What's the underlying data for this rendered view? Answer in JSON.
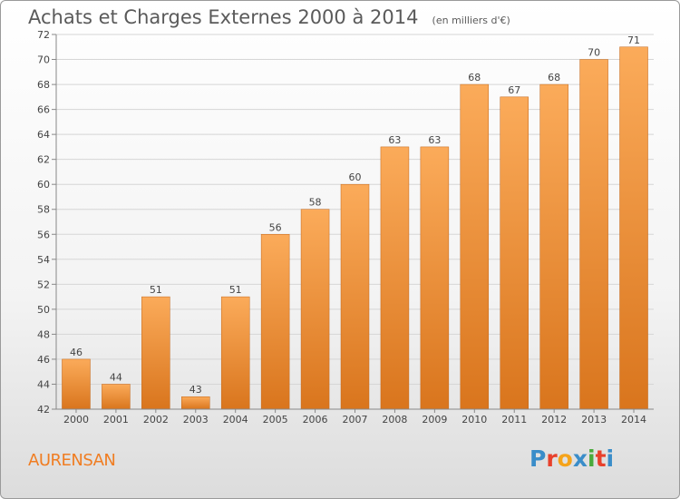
{
  "header": {
    "title": "Achats et Charges Externes 2000 à 2014",
    "unit_note": "(en milliers d'€)"
  },
  "footer": {
    "commune": "AURENSAN",
    "logo_text": "Proxiti",
    "logo_colors": [
      "#3a8dc9",
      "#e8412c",
      "#f5a31a",
      "#3a8dc9",
      "#4aaa3c",
      "#e8412c",
      "#3a8dc9"
    ]
  },
  "colors": {
    "bar_light": "#fbab5a",
    "bar_dark": "#d9751d",
    "bar_edge": "#c2661a",
    "grid": "#d6d6d6",
    "axis": "#888888",
    "commune_text": "#f07d22"
  },
  "chart_data": {
    "type": "bar",
    "title": "Achats et Charges Externes 2000 à 2014",
    "subtitle": "(en milliers d'€)",
    "xlabel": "",
    "ylabel": "",
    "categories": [
      "2000",
      "2001",
      "2002",
      "2003",
      "2004",
      "2005",
      "2006",
      "2007",
      "2008",
      "2009",
      "2010",
      "2011",
      "2012",
      "2013",
      "2014"
    ],
    "values": [
      46,
      44,
      51,
      43,
      51,
      56,
      58,
      60,
      63,
      63,
      68,
      67,
      68,
      70,
      71
    ],
    "ylim": [
      42,
      72
    ],
    "yticks": [
      42,
      44,
      46,
      48,
      50,
      52,
      54,
      56,
      58,
      60,
      62,
      64,
      66,
      68,
      70,
      72
    ],
    "grid": true,
    "data_labels": true
  }
}
